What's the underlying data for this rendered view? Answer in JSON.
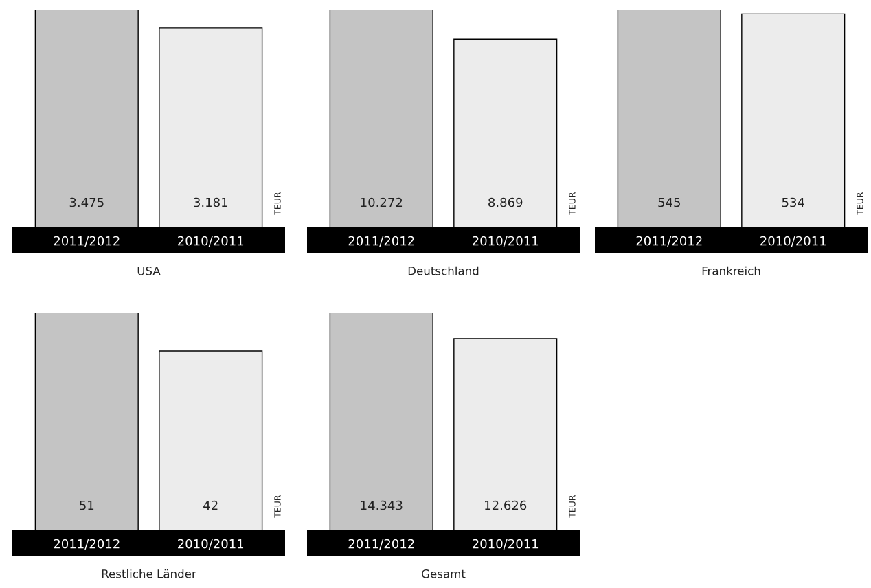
{
  "chart_data": [
    {
      "type": "bar",
      "title": "USA",
      "ylabel": "TEUR",
      "categories": [
        "2011/2012",
        "2010/2011"
      ],
      "values": [
        3475,
        3181
      ],
      "value_labels": [
        "3.475",
        "3.181"
      ],
      "colors": [
        "#c4c4c4",
        "#ececec"
      ]
    },
    {
      "type": "bar",
      "title": "Deutschland",
      "ylabel": "TEUR",
      "categories": [
        "2011/2012",
        "2010/2011"
      ],
      "values": [
        10272,
        8869
      ],
      "value_labels": [
        "10.272",
        "8.869"
      ],
      "colors": [
        "#c4c4c4",
        "#ececec"
      ]
    },
    {
      "type": "bar",
      "title": "Frankreich",
      "ylabel": "TEUR",
      "categories": [
        "2011/2012",
        "2010/2011"
      ],
      "values": [
        545,
        534
      ],
      "value_labels": [
        "545",
        "534"
      ],
      "colors": [
        "#c4c4c4",
        "#ececec"
      ]
    },
    {
      "type": "bar",
      "title": "Restliche Länder",
      "ylabel": "TEUR",
      "categories": [
        "2011/2012",
        "2010/2011"
      ],
      "values": [
        51,
        42
      ],
      "value_labels": [
        "51",
        "42"
      ],
      "colors": [
        "#c4c4c4",
        "#ececec"
      ]
    },
    {
      "type": "bar",
      "title": "Gesamt",
      "ylabel": "TEUR",
      "categories": [
        "2011/2012",
        "2010/2011"
      ],
      "values": [
        14343,
        12626
      ],
      "value_labels": [
        "14.343",
        "12.626"
      ],
      "colors": [
        "#c4c4c4",
        "#ececec"
      ]
    }
  ]
}
